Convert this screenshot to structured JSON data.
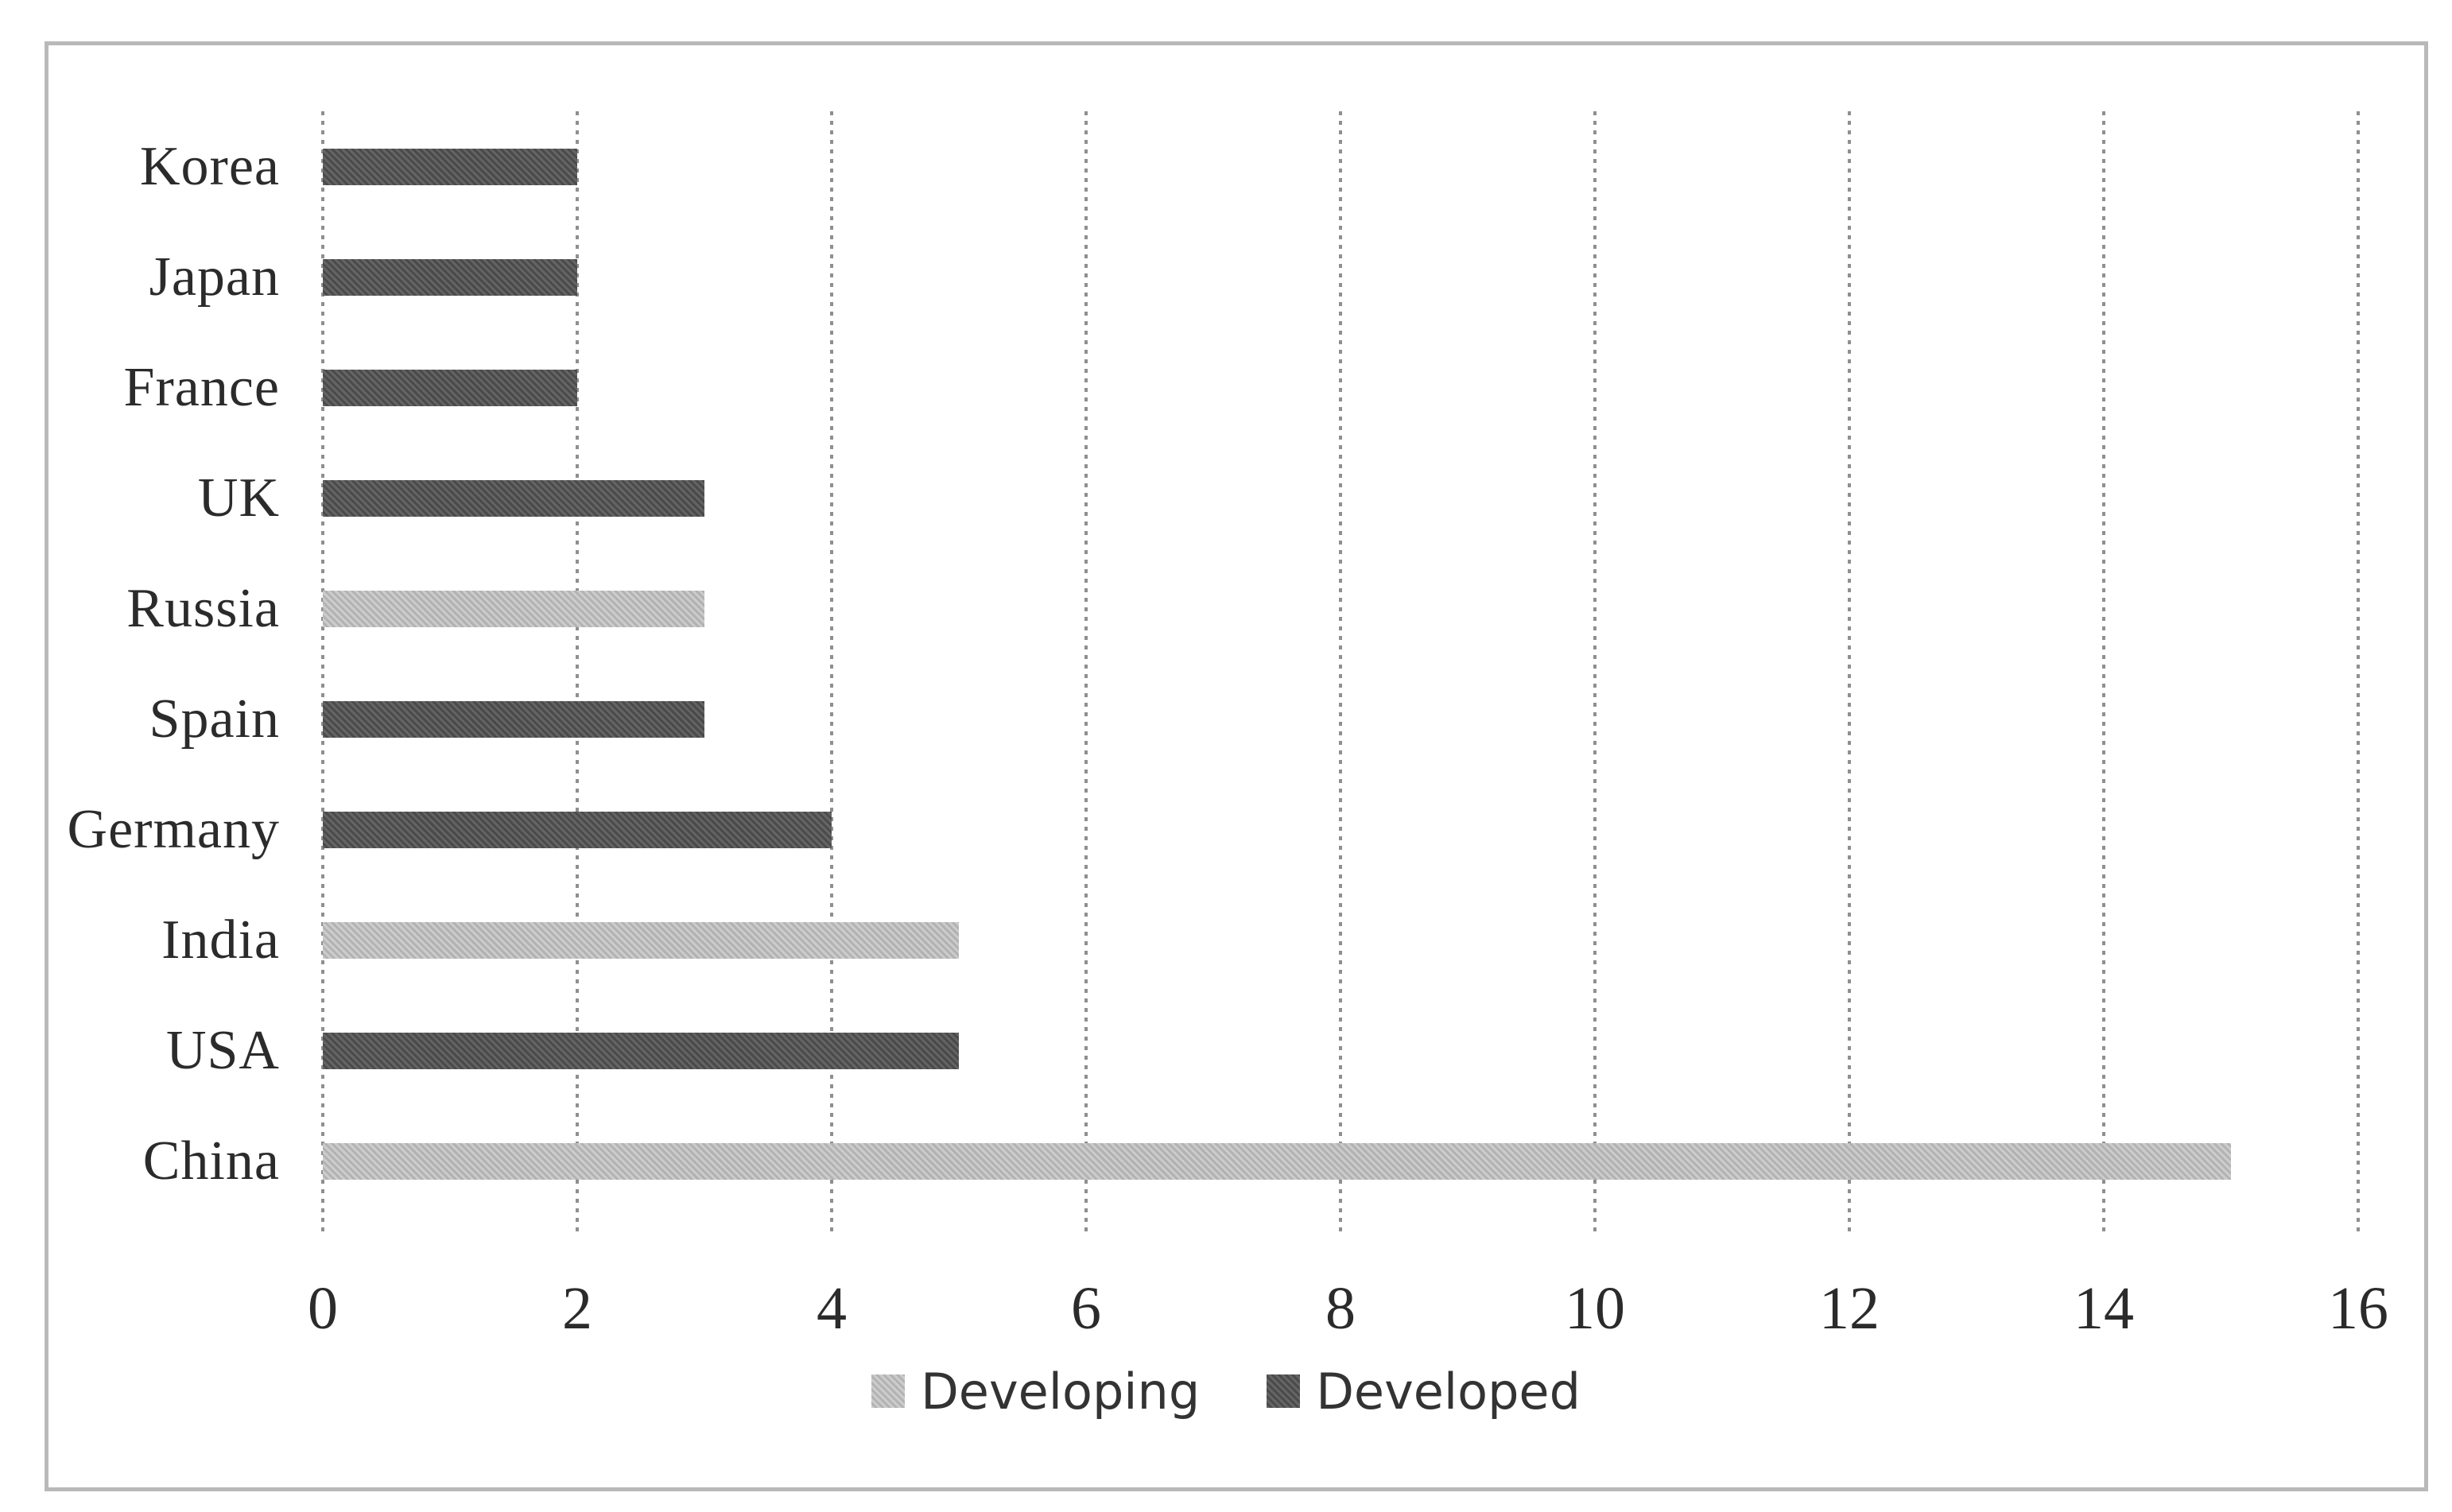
{
  "chart_data": {
    "type": "bar",
    "orientation": "horizontal",
    "title": "",
    "xlabel": "",
    "ylabel": "",
    "categories": [
      "Korea",
      "Japan",
      "France",
      "UK",
      "Russia",
      "Spain",
      "Germany",
      "India",
      "USA",
      "China"
    ],
    "series": [
      {
        "name": "Developing",
        "color": "#c6c6c6",
        "values": [
          0,
          0,
          0,
          0,
          3,
          0,
          0,
          5,
          0,
          15
        ]
      },
      {
        "name": "Developed",
        "color": "#525252",
        "values": [
          2,
          2,
          2,
          3,
          0,
          3,
          4,
          0,
          5,
          0
        ]
      }
    ],
    "xlim": [
      0,
      16
    ],
    "xticks": [
      0,
      2,
      4,
      6,
      8,
      10,
      12,
      14,
      16
    ],
    "grid": "vertical",
    "gridline_style": "dotted",
    "legend_position": "bottom"
  },
  "colors": {
    "background": "#ffffff",
    "frame_border": "#b9b9b9",
    "gridline": "#8f8f8f",
    "text": "#2b2b2b"
  }
}
